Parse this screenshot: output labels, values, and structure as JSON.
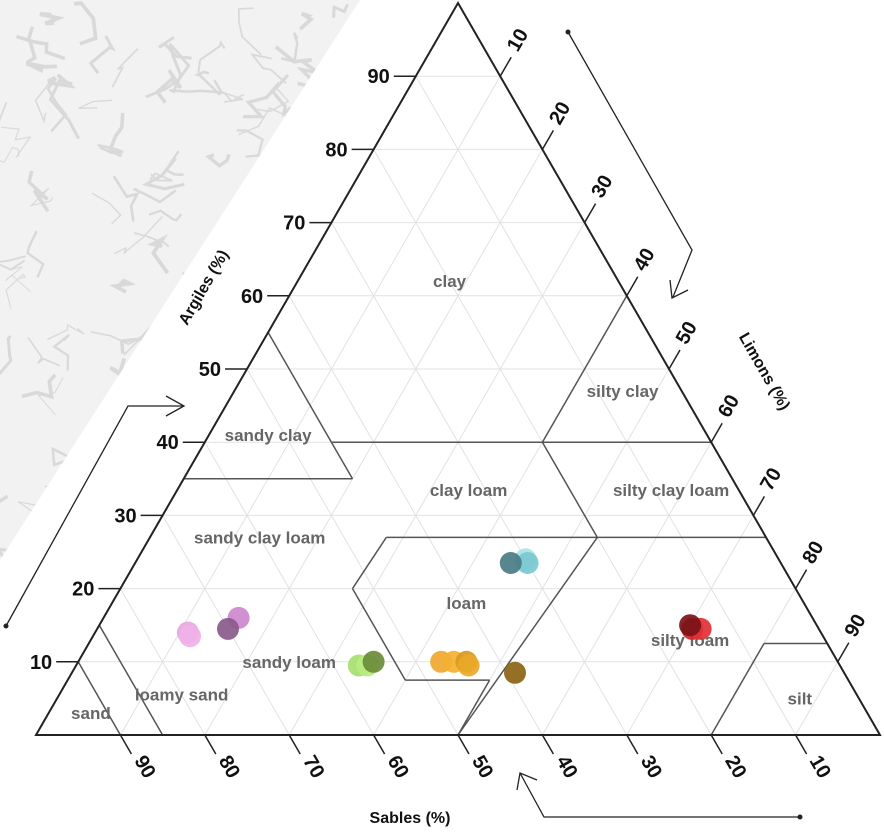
{
  "chart_data": {
    "type": "scatter",
    "subtype": "ternary-soil-texture",
    "axes": {
      "clay": {
        "label": "Argiles (%)",
        "ticks": [
          10,
          20,
          30,
          40,
          50,
          60,
          70,
          80,
          90
        ]
      },
      "silt": {
        "label": "Limons (%)",
        "ticks": [
          10,
          20,
          30,
          40,
          50,
          60,
          70,
          80,
          90
        ]
      },
      "sand": {
        "label": "Sables (%)",
        "ticks": [
          90,
          80,
          70,
          60,
          50,
          40,
          30,
          20,
          10
        ]
      }
    },
    "grid": true,
    "regions": [
      {
        "name": "clay",
        "label_at": {
          "clay": 62,
          "sand": 20
        }
      },
      {
        "name": "silty clay",
        "label_at": {
          "clay": 47,
          "sand": 7
        }
      },
      {
        "name": "sandy clay",
        "label_at": {
          "clay": 41,
          "sand": 52
        }
      },
      {
        "name": "clay loam",
        "label_at": {
          "clay": 33.5,
          "sand": 32
        }
      },
      {
        "name": "silty clay loam",
        "label_at": {
          "clay": 33.5,
          "sand": 8
        }
      },
      {
        "name": "sandy clay loam",
        "label_at": {
          "clay": 27,
          "sand": 60
        }
      },
      {
        "name": "loam",
        "label_at": {
          "clay": 18,
          "sand": 40
        }
      },
      {
        "name": "silty loam",
        "label_at": {
          "clay": 13,
          "sand": 16
        }
      },
      {
        "name": "sandy loam",
        "label_at": {
          "clay": 10,
          "sand": 65
        }
      },
      {
        "name": "loamy sand",
        "label_at": {
          "clay": 5.5,
          "sand": 80
        }
      },
      {
        "name": "sand",
        "label_at": {
          "clay": 3,
          "sand": 92
        }
      },
      {
        "name": "silt",
        "label_at": {
          "clay": 5,
          "sand": 7
        }
      }
    ],
    "points": [
      {
        "clay": 24,
        "sand": 30,
        "color": "#a8e4ec"
      },
      {
        "clay": 23.5,
        "sand": 30,
        "color": "#7cc8d0"
      },
      {
        "clay": 23.5,
        "sand": 32,
        "color": "#4a7c85"
      },
      {
        "clay": 16,
        "sand": 68,
        "color": "#cc88cc"
      },
      {
        "clay": 14.5,
        "sand": 70,
        "color": "#8a5a8a"
      },
      {
        "clay": 14,
        "sand": 75,
        "color": "#e8a8e0"
      },
      {
        "clay": 13.5,
        "sand": 75,
        "color": "#f0b0e8"
      },
      {
        "clay": 9.5,
        "sand": 57,
        "color": "#a6e070"
      },
      {
        "clay": 9.5,
        "sand": 56,
        "color": "#b8ea80"
      },
      {
        "clay": 10,
        "sand": 55,
        "color": "#6a8c38"
      },
      {
        "clay": 10,
        "sand": 47,
        "color": "#f0a830"
      },
      {
        "clay": 10,
        "sand": 45.5,
        "color": "#f5b030"
      },
      {
        "clay": 10,
        "sand": 44,
        "color": "#d89a20"
      },
      {
        "clay": 9.5,
        "sand": 44,
        "color": "#eaa828"
      },
      {
        "clay": 8.5,
        "sand": 39,
        "color": "#8a6414"
      },
      {
        "clay": 14.5,
        "sand": 15,
        "color": "#d42428"
      },
      {
        "clay": 14.5,
        "sand": 14,
        "color": "#e03034"
      },
      {
        "clay": 15,
        "sand": 15,
        "color": "#7a1418"
      }
    ]
  }
}
